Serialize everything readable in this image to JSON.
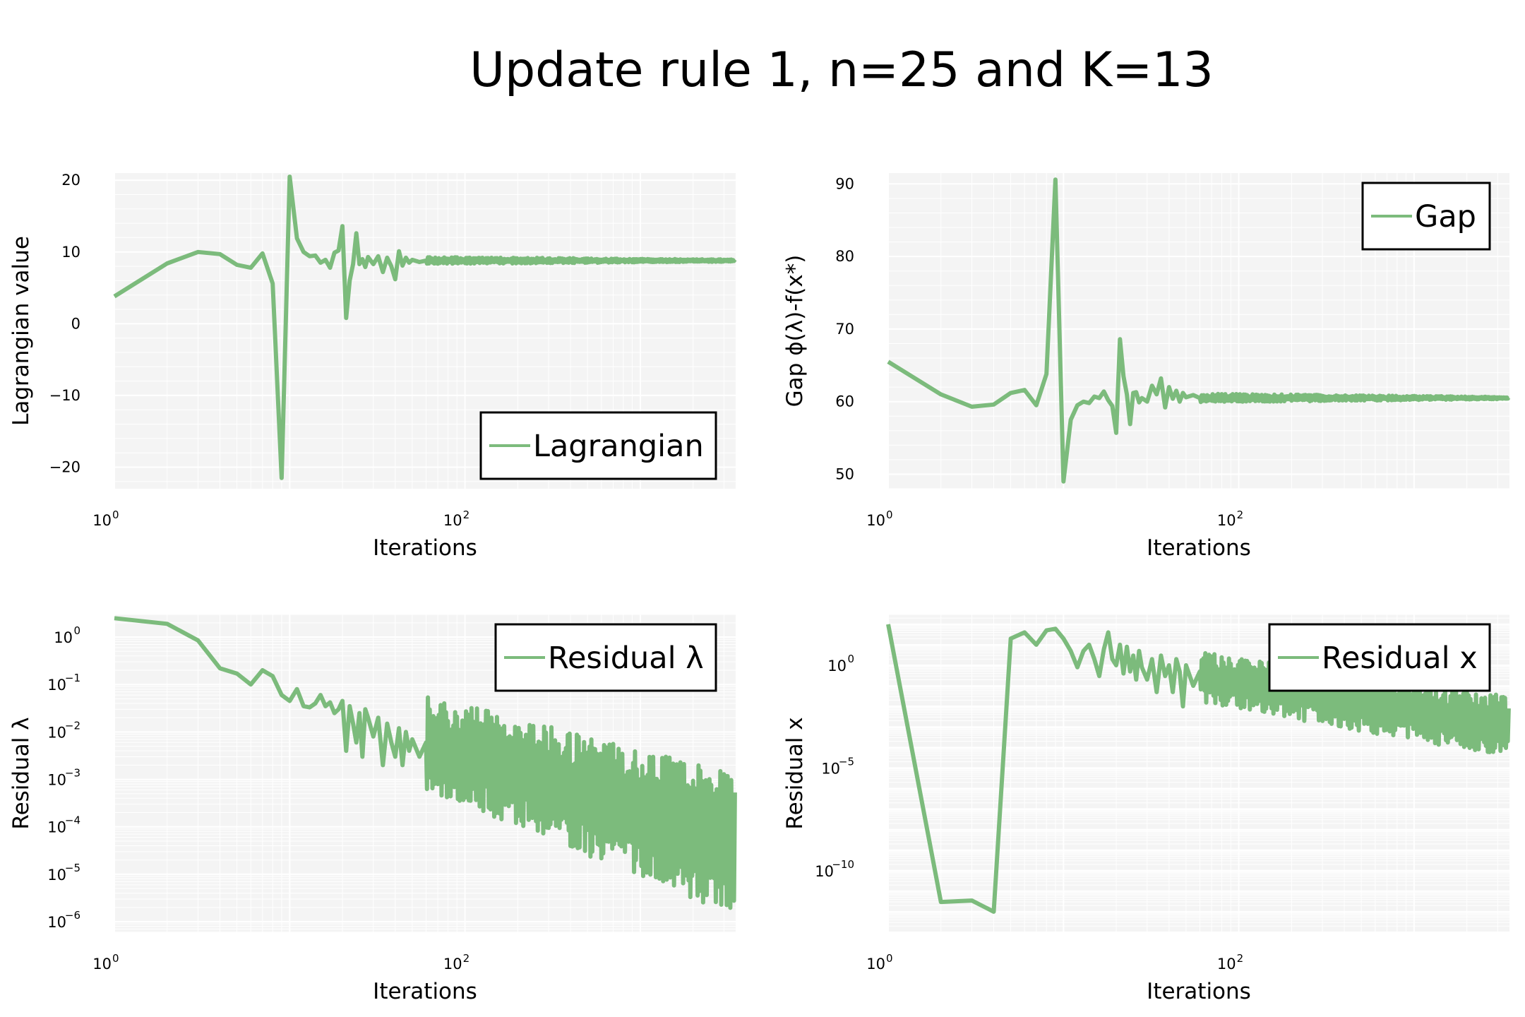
{
  "figure": {
    "title": "Update rule 1, n=25 and K=13"
  },
  "colors": {
    "series": "#7cbb7c",
    "panel_bg": "#f4f4f4",
    "grid": "#ffffff",
    "text": "#000000"
  },
  "chart_data": [
    {
      "type": "line",
      "xscale": "log",
      "yscale": "linear",
      "xlim": [
        1,
        3500
      ],
      "ylim": [
        -23,
        21
      ],
      "xlabel": "Iterations",
      "ylabel": "Lagrangian value",
      "xticks": [
        {
          "base": "10",
          "exp": "0",
          "value": 1
        },
        {
          "base": "10",
          "exp": "2",
          "value": 100
        }
      ],
      "yticks": [
        {
          "label": "20",
          "value": 20
        },
        {
          "label": "10",
          "value": 10
        },
        {
          "label": "0",
          "value": 0
        },
        {
          "label": "−10",
          "value": -10
        },
        {
          "label": "−20",
          "value": -20
        }
      ],
      "grid": true,
      "legend_position": "bottom-right",
      "series": [
        {
          "name": "Lagrangian",
          "noise": {
            "from_x": 60,
            "center": 8.8,
            "amp_start": 0.5,
            "amp_end": 0.15,
            "scale": "linear"
          },
          "x": [
            1,
            2,
            3,
            4,
            5,
            6,
            7,
            8,
            9,
            10,
            11,
            12,
            13,
            14,
            15,
            16,
            17,
            18,
            19,
            20,
            21,
            22,
            23,
            24,
            25,
            26,
            27,
            28,
            30,
            32,
            34,
            36,
            38,
            40,
            42,
            44,
            46,
            48,
            50,
            55,
            60
          ],
          "y": [
            3.8,
            8.4,
            10.0,
            9.7,
            8.2,
            7.8,
            9.8,
            5.6,
            -21.5,
            20.5,
            11.9,
            10.0,
            9.4,
            9.5,
            8.5,
            8.9,
            7.8,
            9.9,
            10.2,
            13.6,
            0.8,
            6.0,
            8.3,
            12.6,
            8.3,
            9.0,
            7.9,
            9.3,
            8.3,
            9.4,
            7.2,
            9.2,
            8.0,
            6.2,
            10.1,
            8.1,
            9.2,
            8.5,
            8.9,
            8.6,
            8.8
          ]
        }
      ]
    },
    {
      "type": "line",
      "xscale": "log",
      "yscale": "linear",
      "xlim": [
        1,
        3500
      ],
      "ylim": [
        48,
        91.5
      ],
      "xlabel": "Iterations",
      "ylabel": "Gap ϕ(λ)-f(x*)",
      "xticks": [
        {
          "base": "10",
          "exp": "0",
          "value": 1
        },
        {
          "base": "10",
          "exp": "2",
          "value": 100
        }
      ],
      "yticks": [
        {
          "label": "90",
          "value": 90
        },
        {
          "label": "80",
          "value": 80
        },
        {
          "label": "70",
          "value": 70
        },
        {
          "label": "60",
          "value": 60
        },
        {
          "label": "50",
          "value": 50
        }
      ],
      "grid": true,
      "legend_position": "top-right",
      "series": [
        {
          "name": "Gap",
          "noise": {
            "from_x": 60,
            "center": 60.5,
            "amp_start": 0.6,
            "amp_end": 0.15,
            "scale": "linear"
          },
          "x": [
            1,
            2,
            3,
            4,
            5,
            6,
            7,
            8,
            9,
            10,
            11,
            12,
            13,
            14,
            15,
            16,
            17,
            18,
            19,
            20,
            21,
            22,
            23,
            24,
            25,
            26,
            27,
            28,
            30,
            32,
            34,
            36,
            38,
            40,
            42,
            44,
            46,
            48,
            50,
            55,
            60
          ],
          "y": [
            65.5,
            61.0,
            59.3,
            59.6,
            61.2,
            61.6,
            59.5,
            63.8,
            90.6,
            49.0,
            57.5,
            59.5,
            60.0,
            59.8,
            60.7,
            60.5,
            61.4,
            60.2,
            59.4,
            55.7,
            68.6,
            63.5,
            61.0,
            56.9,
            61.2,
            61.3,
            59.9,
            60.5,
            60.0,
            62.2,
            61.0,
            63.2,
            59.2,
            62.0,
            60.4,
            61.5,
            60.0,
            61.2,
            60.6,
            60.9,
            60.5
          ]
        }
      ]
    },
    {
      "type": "line",
      "xscale": "log",
      "yscale": "log",
      "xlim": [
        1,
        3500
      ],
      "ylim": [
        6e-07,
        3.0
      ],
      "xlabel": "Iterations",
      "ylabel": "Residual λ",
      "xticks": [
        {
          "base": "10",
          "exp": "0",
          "value": 1
        },
        {
          "base": "10",
          "exp": "2",
          "value": 100
        }
      ],
      "yticks": [
        {
          "base": "10",
          "exp": "0",
          "value": 1
        },
        {
          "base": "10",
          "exp": "−1",
          "value": 0.1
        },
        {
          "base": "10",
          "exp": "−2",
          "value": 0.01
        },
        {
          "base": "10",
          "exp": "−3",
          "value": 0.001
        },
        {
          "base": "10",
          "exp": "−4",
          "value": 0.0001
        },
        {
          "base": "10",
          "exp": "−5",
          "value": 1e-05
        },
        {
          "base": "10",
          "exp": "−6",
          "value": 1e-06
        }
      ],
      "grid": true,
      "legend_position": "top-right",
      "series": [
        {
          "name": "Residual λ",
          "noise": {
            "from_x": 60,
            "center_start": 0.006,
            "center_end": 4e-05,
            "amp_start": 1.0,
            "amp_end": 1.5,
            "scale": "log"
          },
          "x": [
            1,
            2,
            3,
            4,
            5,
            6,
            7,
            8,
            9,
            10,
            11,
            12,
            13,
            14,
            15,
            16,
            17,
            18,
            19,
            20,
            21,
            22,
            23,
            24,
            25,
            26,
            27,
            28,
            30,
            32,
            34,
            36,
            38,
            40,
            42,
            44,
            46,
            48,
            50,
            55,
            60
          ],
          "y": [
            2.5,
            1.9,
            0.85,
            0.22,
            0.17,
            0.1,
            0.2,
            0.15,
            0.06,
            0.045,
            0.08,
            0.035,
            0.033,
            0.04,
            0.06,
            0.035,
            0.042,
            0.025,
            0.03,
            0.045,
            0.004,
            0.035,
            0.015,
            0.006,
            0.025,
            0.003,
            0.03,
            0.02,
            0.008,
            0.02,
            0.002,
            0.015,
            0.006,
            0.003,
            0.012,
            0.002,
            0.01,
            0.004,
            0.007,
            0.003,
            0.006
          ]
        }
      ]
    },
    {
      "type": "line",
      "xscale": "log",
      "yscale": "log",
      "xlim": [
        1,
        3500
      ],
      "ylim": [
        1e-13,
        300
      ],
      "xlabel": "Iterations",
      "ylabel": "Residual x",
      "xticks": [
        {
          "base": "10",
          "exp": "0",
          "value": 1
        },
        {
          "base": "10",
          "exp": "2",
          "value": 100
        }
      ],
      "yticks": [
        {
          "base": "10",
          "exp": "0",
          "value": 1
        },
        {
          "base": "10",
          "exp": "−5",
          "value": 1e-05
        },
        {
          "base": "10",
          "exp": "−10",
          "value": 1e-10
        }
      ],
      "grid": true,
      "legend_position": "top-right",
      "series": [
        {
          "name": "Residual x",
          "noise": {
            "from_x": 60,
            "center_start": 0.3,
            "center_end": 0.001,
            "amp_start": 1.3,
            "amp_end": 1.5,
            "scale": "log"
          },
          "x": [
            1,
            2,
            3,
            4,
            5,
            6,
            7,
            8,
            9,
            10,
            11,
            12,
            13,
            14,
            15,
            16,
            17,
            18,
            19,
            20,
            21,
            22,
            23,
            24,
            25,
            26,
            27,
            28,
            30,
            32,
            34,
            36,
            38,
            40,
            42,
            44,
            46,
            48,
            50,
            55,
            60
          ],
          "y": [
            100,
            3e-12,
            3.5e-12,
            1e-12,
            20,
            40,
            10,
            50,
            60,
            20,
            5,
            0.8,
            5,
            10,
            2,
            0.3,
            6,
            40,
            2,
            1,
            10,
            0.4,
            8,
            0.5,
            3,
            0.2,
            5,
            0.8,
            0.2,
            2,
            0.05,
            3,
            0.3,
            1,
            0.05,
            2,
            0.5,
            0.01,
            1,
            0.1,
            0.5
          ]
        }
      ]
    }
  ]
}
